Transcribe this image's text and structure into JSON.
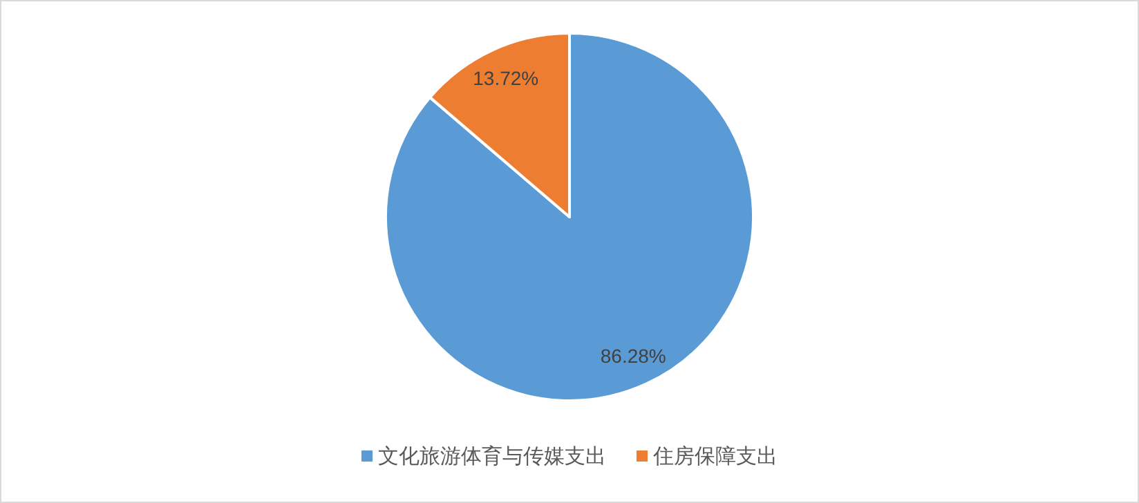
{
  "chart_data": {
    "type": "pie",
    "categories": [
      "文化旅游体育与传媒支出",
      "住房保障支出"
    ],
    "values": [
      86.28,
      13.72
    ],
    "colors": [
      "#5b9bd5",
      "#ed7d31"
    ],
    "value_labels": [
      "86.28%",
      "13.72%"
    ],
    "legend": "bottom"
  }
}
